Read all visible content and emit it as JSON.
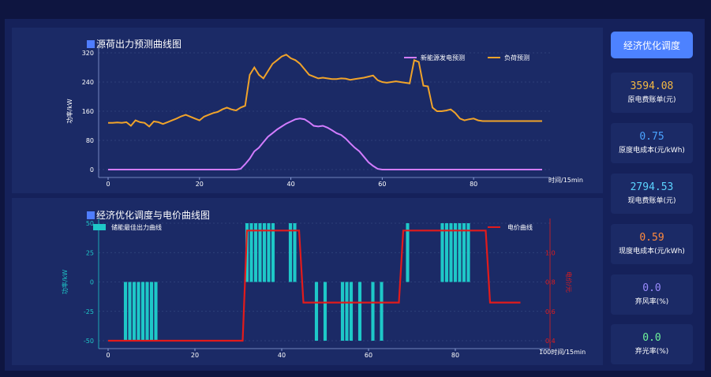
{
  "sidebar": {
    "button_label": "经济优化调度",
    "cards": [
      {
        "value": "3594.08",
        "label": "原电费账单(元)",
        "color": "#f5b942"
      },
      {
        "value": "0.75",
        "label": "原度电成本(元/kWh)",
        "color": "#4aa3ff"
      },
      {
        "value": "2794.53",
        "label": "现电费账单(元)",
        "color": "#5bd3ff"
      },
      {
        "value": "0.59",
        "label": "现度电成本(元/kWh)",
        "color": "#ff8a3d"
      },
      {
        "value": "0.0",
        "label": "弃风率(%)",
        "color": "#9b8cff"
      },
      {
        "value": "0.0",
        "label": "弃光率(%)",
        "color": "#6ff59b"
      }
    ]
  },
  "chart1": {
    "title": "源荷出力预测曲线图",
    "ylabel": "功率/kW",
    "xlabel": "时间/15min",
    "legend": [
      "新能源发电预测",
      "负荷预测"
    ],
    "colors": [
      "#d27cff",
      "#f0a32a"
    ],
    "yticks": [
      "0",
      "80",
      "160",
      "240",
      "320"
    ],
    "xticks": [
      "0",
      "20",
      "40",
      "60",
      "80"
    ],
    "chart_data": {
      "type": "line",
      "x_range": [
        0,
        95
      ],
      "y_range": [
        0,
        320
      ],
      "series": [
        {
          "name": "新能源发电预测",
          "values": [
            0,
            0,
            0,
            0,
            0,
            0,
            0,
            0,
            0,
            0,
            0,
            0,
            0,
            0,
            0,
            0,
            0,
            0,
            0,
            0,
            0,
            0,
            0,
            0,
            0,
            0,
            0,
            0,
            0,
            2,
            15,
            30,
            50,
            60,
            75,
            90,
            100,
            110,
            118,
            126,
            132,
            138,
            140,
            138,
            130,
            120,
            118,
            120,
            115,
            108,
            100,
            95,
            85,
            72,
            60,
            50,
            35,
            20,
            10,
            2,
            0,
            0,
            0,
            0,
            0,
            0,
            0,
            0,
            0,
            0,
            0,
            0,
            0,
            0,
            0,
            0,
            0,
            0,
            0,
            0,
            0,
            0,
            0,
            0,
            0,
            0,
            0,
            0,
            0,
            0,
            0,
            0,
            0,
            0,
            0,
            0
          ]
        },
        {
          "name": "负荷预测",
          "values": [
            128,
            128,
            129,
            128,
            130,
            120,
            135,
            130,
            128,
            118,
            132,
            130,
            125,
            130,
            135,
            140,
            146,
            150,
            145,
            140,
            135,
            145,
            150,
            155,
            158,
            165,
            170,
            165,
            162,
            170,
            175,
            260,
            280,
            260,
            250,
            270,
            290,
            300,
            310,
            315,
            305,
            300,
            290,
            275,
            260,
            255,
            250,
            252,
            250,
            248,
            248,
            250,
            249,
            246,
            248,
            250,
            252,
            255,
            258,
            245,
            240,
            238,
            240,
            242,
            240,
            238,
            236,
            300,
            295,
            230,
            228,
            170,
            160,
            160,
            162,
            165,
            155,
            140,
            135,
            138,
            140,
            135,
            133,
            133,
            133,
            133,
            133,
            133,
            133,
            133,
            133,
            133,
            133,
            133,
            133,
            133
          ]
        }
      ]
    }
  },
  "chart2": {
    "title": "经济优化调度与电价曲线图",
    "ylabel": "功率/kW",
    "ylabel_right": "电价/元",
    "xlabel": "时间/15min",
    "legend": [
      "储能最佳出力曲线",
      "电价曲线"
    ],
    "colors": [
      "#1ec8c8",
      "#e21b1b"
    ],
    "yticks": [
      "-50",
      "-25",
      "0",
      "25",
      "50"
    ],
    "yticks_right": [
      "0.4",
      "0.6",
      "0.8",
      "1.0"
    ],
    "xticks": [
      "0",
      "20",
      "40",
      "60",
      "80",
      "100"
    ],
    "chart_data": {
      "type": "bar",
      "x_range": [
        0,
        100
      ],
      "y_range": [
        -50,
        50
      ],
      "y2_range": [
        0.4,
        1.2
      ],
      "bars": [
        {
          "x": 4,
          "value": -50
        },
        {
          "x": 5,
          "value": -50
        },
        {
          "x": 6,
          "value": -50
        },
        {
          "x": 7,
          "value": -50
        },
        {
          "x": 8,
          "value": -50
        },
        {
          "x": 9,
          "value": -50
        },
        {
          "x": 10,
          "value": -50
        },
        {
          "x": 11,
          "value": -50
        },
        {
          "x": 32,
          "value": 50
        },
        {
          "x": 33,
          "value": 50
        },
        {
          "x": 34,
          "value": 50
        },
        {
          "x": 35,
          "value": 50
        },
        {
          "x": 36,
          "value": 50
        },
        {
          "x": 37,
          "value": 50
        },
        {
          "x": 38,
          "value": 50
        },
        {
          "x": 42,
          "value": 50
        },
        {
          "x": 43,
          "value": 50
        },
        {
          "x": 48,
          "value": -50
        },
        {
          "x": 50,
          "value": -50
        },
        {
          "x": 54,
          "value": -50
        },
        {
          "x": 55,
          "value": -50
        },
        {
          "x": 56,
          "value": -50
        },
        {
          "x": 58,
          "value": -50
        },
        {
          "x": 61,
          "value": -50
        },
        {
          "x": 63,
          "value": -50
        },
        {
          "x": 69,
          "value": 50
        },
        {
          "x": 77,
          "value": 50
        },
        {
          "x": 78,
          "value": 50
        },
        {
          "x": 79,
          "value": 50
        },
        {
          "x": 80,
          "value": 50
        },
        {
          "x": 81,
          "value": 50
        },
        {
          "x": 82,
          "value": 50
        },
        {
          "x": 83,
          "value": 50
        }
      ],
      "price": [
        [
          0,
          0.4
        ],
        [
          31,
          0.4
        ],
        [
          32,
          1.15
        ],
        [
          44,
          1.15
        ],
        [
          45,
          0.66
        ],
        [
          67,
          0.66
        ],
        [
          68,
          1.15
        ],
        [
          87,
          1.15
        ],
        [
          88,
          0.66
        ],
        [
          95,
          0.66
        ]
      ]
    }
  }
}
